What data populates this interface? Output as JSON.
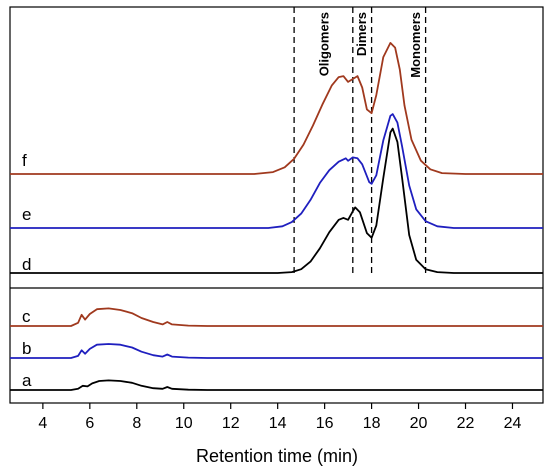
{
  "chart_data": {
    "type": "line",
    "xlabel": "Retention time (min)",
    "xlim": [
      2.6,
      25.3
    ],
    "x_ticks": [
      4,
      6,
      8,
      10,
      12,
      14,
      16,
      18,
      20,
      22,
      24
    ],
    "x_tick_labels": [
      "4",
      "6",
      "8",
      "10",
      "12",
      "14",
      "16",
      "18",
      "20",
      "22",
      "24"
    ],
    "y_ticks_shown": false,
    "dividers": [
      14.7,
      17.2,
      18.0,
      20.3
    ],
    "regions": [
      {
        "label": "Oligomers",
        "x": 16.0
      },
      {
        "label": "Dimers",
        "x": 17.6
      },
      {
        "label": "Monomers",
        "x": 19.9
      }
    ],
    "series": [
      {
        "label": "a",
        "color": "#000000",
        "points": [
          [
            2.6,
            0
          ],
          [
            5.2,
            0
          ],
          [
            5.5,
            0.2
          ],
          [
            5.7,
            0.7
          ],
          [
            5.9,
            0.6
          ],
          [
            6.1,
            1.1
          ],
          [
            6.4,
            1.5
          ],
          [
            6.8,
            1.6
          ],
          [
            7.3,
            1.5
          ],
          [
            7.8,
            1.2
          ],
          [
            8.2,
            0.7
          ],
          [
            8.7,
            0.3
          ],
          [
            9.1,
            0.2
          ],
          [
            9.3,
            0.5
          ],
          [
            9.5,
            0.2
          ],
          [
            10.2,
            0.05
          ],
          [
            11,
            0
          ],
          [
            25.3,
            0
          ]
        ]
      },
      {
        "label": "b",
        "color": "#1f1fbf",
        "points": [
          [
            2.6,
            0
          ],
          [
            5.2,
            0
          ],
          [
            5.5,
            0.3
          ],
          [
            5.65,
            1.1
          ],
          [
            5.8,
            0.6
          ],
          [
            6.0,
            1.3
          ],
          [
            6.3,
            1.9
          ],
          [
            6.8,
            2.0
          ],
          [
            7.3,
            1.9
          ],
          [
            7.8,
            1.5
          ],
          [
            8.2,
            0.9
          ],
          [
            8.7,
            0.4
          ],
          [
            9.1,
            0.2
          ],
          [
            9.3,
            0.5
          ],
          [
            9.5,
            0.2
          ],
          [
            10.2,
            0.05
          ],
          [
            11,
            0
          ],
          [
            25.3,
            0
          ]
        ]
      },
      {
        "label": "c",
        "color": "#a0391e",
        "points": [
          [
            2.6,
            0
          ],
          [
            5.2,
            0
          ],
          [
            5.5,
            0.4
          ],
          [
            5.65,
            1.4
          ],
          [
            5.8,
            0.8
          ],
          [
            6.0,
            1.5
          ],
          [
            6.3,
            2.1
          ],
          [
            6.8,
            2.2
          ],
          [
            7.3,
            2.0
          ],
          [
            7.8,
            1.6
          ],
          [
            8.2,
            1.0
          ],
          [
            8.7,
            0.5
          ],
          [
            9.1,
            0.2
          ],
          [
            9.3,
            0.5
          ],
          [
            9.5,
            0.2
          ],
          [
            10.2,
            0.05
          ],
          [
            11,
            0
          ],
          [
            25.3,
            0
          ]
        ]
      },
      {
        "label": "d",
        "color": "#000000",
        "points": [
          [
            2.6,
            0
          ],
          [
            14.0,
            0
          ],
          [
            14.6,
            0.1
          ],
          [
            15.0,
            0.4
          ],
          [
            15.4,
            1.2
          ],
          [
            15.8,
            2.6
          ],
          [
            16.2,
            4.3
          ],
          [
            16.6,
            5.6
          ],
          [
            16.8,
            5.8
          ],
          [
            17.0,
            5.6
          ],
          [
            17.2,
            6.5
          ],
          [
            17.3,
            6.9
          ],
          [
            17.5,
            6.4
          ],
          [
            17.8,
            4.2
          ],
          [
            18.0,
            3.7
          ],
          [
            18.2,
            5.0
          ],
          [
            18.5,
            10.0
          ],
          [
            18.8,
            14.8
          ],
          [
            18.9,
            15.2
          ],
          [
            19.1,
            13.8
          ],
          [
            19.3,
            10.0
          ],
          [
            19.6,
            4.0
          ],
          [
            19.9,
            1.4
          ],
          [
            20.3,
            0.4
          ],
          [
            20.8,
            0.1
          ],
          [
            21.5,
            0
          ],
          [
            25.3,
            0
          ]
        ]
      },
      {
        "label": "e",
        "color": "#1f1fbf",
        "points": [
          [
            2.6,
            0
          ],
          [
            13.6,
            0
          ],
          [
            14.2,
            0.2
          ],
          [
            14.6,
            0.7
          ],
          [
            15.0,
            1.7
          ],
          [
            15.4,
            3.3
          ],
          [
            15.8,
            5.3
          ],
          [
            16.2,
            6.8
          ],
          [
            16.6,
            7.8
          ],
          [
            16.9,
            8.2
          ],
          [
            17.0,
            7.9
          ],
          [
            17.2,
            8.3
          ],
          [
            17.4,
            8.2
          ],
          [
            17.6,
            7.5
          ],
          [
            17.9,
            5.4
          ],
          [
            18.0,
            5.2
          ],
          [
            18.2,
            6.2
          ],
          [
            18.5,
            10.3
          ],
          [
            18.8,
            13.2
          ],
          [
            18.9,
            13.4
          ],
          [
            19.1,
            12.4
          ],
          [
            19.3,
            9.6
          ],
          [
            19.6,
            5.0
          ],
          [
            19.9,
            2.2
          ],
          [
            20.3,
            0.8
          ],
          [
            20.8,
            0.2
          ],
          [
            21.5,
            0
          ],
          [
            25.3,
            0
          ]
        ]
      },
      {
        "label": "f",
        "color": "#a0391e",
        "points": [
          [
            2.6,
            0
          ],
          [
            13.0,
            0
          ],
          [
            13.8,
            0.2
          ],
          [
            14.3,
            0.7
          ],
          [
            14.7,
            1.6
          ],
          [
            15.1,
            3.1
          ],
          [
            15.5,
            5.1
          ],
          [
            15.9,
            7.3
          ],
          [
            16.3,
            9.3
          ],
          [
            16.6,
            10.2
          ],
          [
            16.8,
            10.3
          ],
          [
            17.0,
            9.7
          ],
          [
            17.2,
            10.0
          ],
          [
            17.4,
            10.3
          ],
          [
            17.6,
            9.1
          ],
          [
            17.8,
            6.8
          ],
          [
            18.0,
            6.4
          ],
          [
            18.2,
            8.3
          ],
          [
            18.5,
            12.3
          ],
          [
            18.8,
            13.8
          ],
          [
            19.0,
            13.3
          ],
          [
            19.2,
            11.0
          ],
          [
            19.4,
            7.2
          ],
          [
            19.7,
            3.6
          ],
          [
            20.1,
            1.4
          ],
          [
            20.5,
            0.5
          ],
          [
            21.0,
            0.1
          ],
          [
            22,
            0
          ],
          [
            25.3,
            0
          ]
        ]
      }
    ]
  }
}
